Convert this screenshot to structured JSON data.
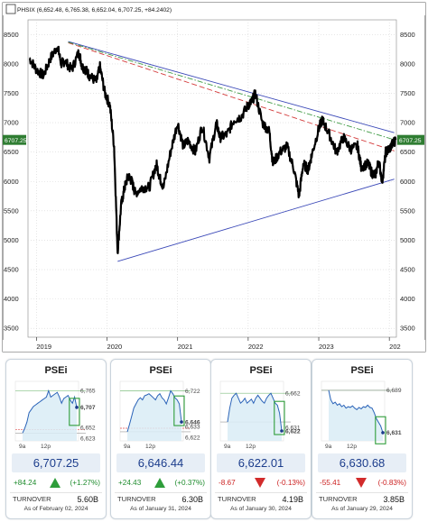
{
  "chart_data": [
    {
      "type": "line",
      "header": "PHSIX (6,652.48, 6,765.38, 6,652.04, 6,707.25, +84.2402)",
      "series": [
        {
          "x": [
            2018.9,
            2019.0,
            2019.1,
            2019.2,
            2019.3,
            2019.35,
            2019.4,
            2019.5,
            2019.6,
            2019.65,
            2019.7,
            2019.75,
            2019.85,
            2019.9,
            2019.97,
            2020.04,
            2020.1,
            2020.15,
            2020.2,
            2020.25,
            2020.3,
            2020.35,
            2020.4,
            2020.5,
            2020.6,
            2020.7,
            2020.75,
            2020.8,
            2020.9,
            2021.0,
            2021.08,
            2021.15,
            2021.25,
            2021.35,
            2021.45,
            2021.55,
            2021.6,
            2021.7,
            2021.8,
            2021.9,
            2022.0,
            2022.05,
            2022.1,
            2022.2,
            2022.3,
            2022.35,
            2022.45,
            2022.55,
            2022.65,
            2022.72,
            2022.78,
            2022.85,
            2022.9,
            2023.0,
            2023.05,
            2023.15,
            2023.25,
            2023.35,
            2023.45,
            2023.55,
            2023.6,
            2023.7,
            2023.75,
            2023.8,
            2023.85,
            2023.9,
            2023.95,
            2024.0,
            2024.05,
            2024.09
          ],
          "values": [
            8100,
            7900,
            7800,
            8100,
            8300,
            8000,
            8050,
            7900,
            8200,
            7950,
            7900,
            7800,
            7700,
            7950,
            7500,
            7300,
            6600,
            4800,
            5600,
            5900,
            6100,
            6000,
            5800,
            5900,
            5900,
            6300,
            6050,
            5900,
            6500,
            7000,
            6600,
            6700,
            6500,
            6950,
            6400,
            7000,
            6750,
            6800,
            7050,
            7100,
            7300,
            7350,
            7500,
            7000,
            6850,
            6300,
            6500,
            6600,
            6200,
            5750,
            6300,
            6200,
            6450,
            6900,
            7050,
            6800,
            6500,
            6750,
            6550,
            6600,
            6250,
            6300,
            6150,
            6100,
            6350,
            6000,
            6500,
            6550,
            6650,
            6707
          ]
        }
      ],
      "price_label": "6707.25",
      "yticks": [
        8500,
        8000,
        7500,
        7000,
        6500,
        6000,
        5500,
        5000,
        4500,
        4000,
        3500
      ],
      "xticks": [
        "2019",
        "2020",
        "2021",
        "2022",
        "2023",
        "202"
      ],
      "xtick_pos": [
        2019,
        2020,
        2021,
        2022,
        2023,
        2024
      ],
      "ylim": [
        3350,
        8750
      ],
      "xlim": [
        2018.88,
        2024.1
      ],
      "trendlines": [
        {
          "kind": "upper",
          "color": "#3b49b8",
          "from": [
            2019.45,
            8380
          ],
          "to": [
            2024.07,
            6830
          ]
        },
        {
          "kind": "lower",
          "color": "#3b49b8",
          "from": [
            2020.15,
            4640
          ],
          "to": [
            2024.07,
            6040
          ]
        },
        {
          "kind": "dashed",
          "color": "#d43a3a",
          "from": [
            2019.45,
            8360
          ],
          "to": [
            2024.07,
            6520
          ]
        },
        {
          "kind": "dashdot",
          "color": "#3e9a43",
          "from": [
            2019.45,
            8370
          ],
          "to": [
            2024.07,
            6710
          ]
        }
      ],
      "grid": true
    }
  ],
  "cards": [
    {
      "title": "PSEi",
      "price": "6,707.25",
      "change_pts": "+84.24",
      "change_pct": "(+1.27%)",
      "direction": "up",
      "turnover_label": "TURNOVER",
      "turnover_value": "5.60B",
      "asof": "As of February 02, 2024",
      "levels": {
        "top": "6,765",
        "last": "6,707",
        "red": "6,652",
        "bottom": "6,623"
      },
      "xlabels": [
        "9a",
        "12p"
      ],
      "chart_data": {
        "type": "line",
        "values": [
          6625,
          6640,
          6660,
          6690,
          6700,
          6710,
          6715,
          6720,
          6725,
          6730,
          6735,
          6740,
          6760,
          6740,
          6745,
          6750,
          6755,
          6740,
          6720,
          6735,
          6740,
          6745,
          6730,
          6720,
          6740,
          6707
        ],
        "ylim": [
          6600,
          6790
        ]
      }
    },
    {
      "title": "PSEi",
      "price": "6,646.44",
      "change_pts": "+24.43",
      "change_pct": "(+0.37%)",
      "direction": "up",
      "turnover_label": "TURNOVER",
      "turnover_value": "6.30B",
      "asof": "As of January 31, 2024",
      "levels": {
        "top": "6,722",
        "last": "6,646",
        "red": "6,633",
        "bottom": "6,622"
      },
      "xlabels": [
        "9a",
        "12p"
      ],
      "chart_data": {
        "type": "line",
        "values": [
          6622,
          6640,
          6660,
          6680,
          6690,
          6700,
          6705,
          6700,
          6710,
          6712,
          6715,
          6710,
          6705,
          6700,
          6710,
          6715,
          6705,
          6700,
          6690,
          6705,
          6722,
          6715,
          6705,
          6700,
          6690,
          6646
        ],
        "ylim": [
          6600,
          6745
        ]
      }
    },
    {
      "title": "PSEi",
      "price": "6,622.01",
      "change_pts": "-8.67",
      "change_pct": "(-0.13%)",
      "direction": "down",
      "turnover_label": "TURNOVER",
      "turnover_value": "4.19B",
      "asof": "As of January 30, 2024",
      "levels": {
        "top": "6,662",
        "last": "6,622",
        "red": "",
        "bottom": "6,631"
      },
      "xlabels": [
        "9a",
        "12p"
      ],
      "chart_data": {
        "type": "line",
        "values": [
          6631,
          6645,
          6655,
          6658,
          6660,
          6655,
          6650,
          6652,
          6655,
          6650,
          6652,
          6654,
          6650,
          6655,
          6658,
          6655,
          6652,
          6650,
          6655,
          6658,
          6660,
          6655,
          6650,
          6648,
          6640,
          6622
        ],
        "ylim": [
          6612,
          6672
        ]
      }
    },
    {
      "title": "PSEi",
      "price": "6,630.68",
      "change_pts": "-55.41",
      "change_pct": "(-0.83%)",
      "direction": "down",
      "turnover_label": "TURNOVER",
      "turnover_value": "3.85B",
      "asof": "As of January 29, 2024",
      "levels": {
        "top": "6,689",
        "last": "6,631",
        "red": "",
        "bottom": ""
      },
      "xlabels": [
        "9a",
        "12p"
      ],
      "chart_data": {
        "type": "line",
        "values": [
          6688,
          6675,
          6670,
          6672,
          6668,
          6670,
          6666,
          6668,
          6664,
          6666,
          6665,
          6667,
          6664,
          6662,
          6665,
          6663,
          6666,
          6665,
          6668,
          6665,
          6664,
          6658,
          6650,
          6645,
          6640,
          6631
        ],
        "ylim": [
          6620,
          6700
        ]
      }
    }
  ]
}
